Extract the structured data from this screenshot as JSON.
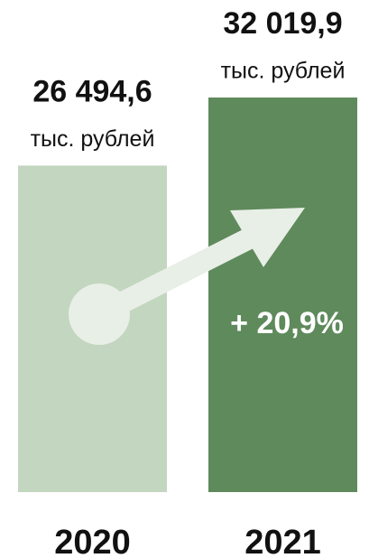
{
  "chart_data": {
    "type": "bar",
    "categories": [
      "2020",
      "2021"
    ],
    "values": [
      26494.6,
      32019.9
    ],
    "value_labels": [
      "26 494,6",
      "32 019,9"
    ],
    "unit": "тыс. рублей",
    "colors": [
      "#c3d6bf",
      "#5f8a5c"
    ],
    "annotation": "+ 20,9%"
  }
}
